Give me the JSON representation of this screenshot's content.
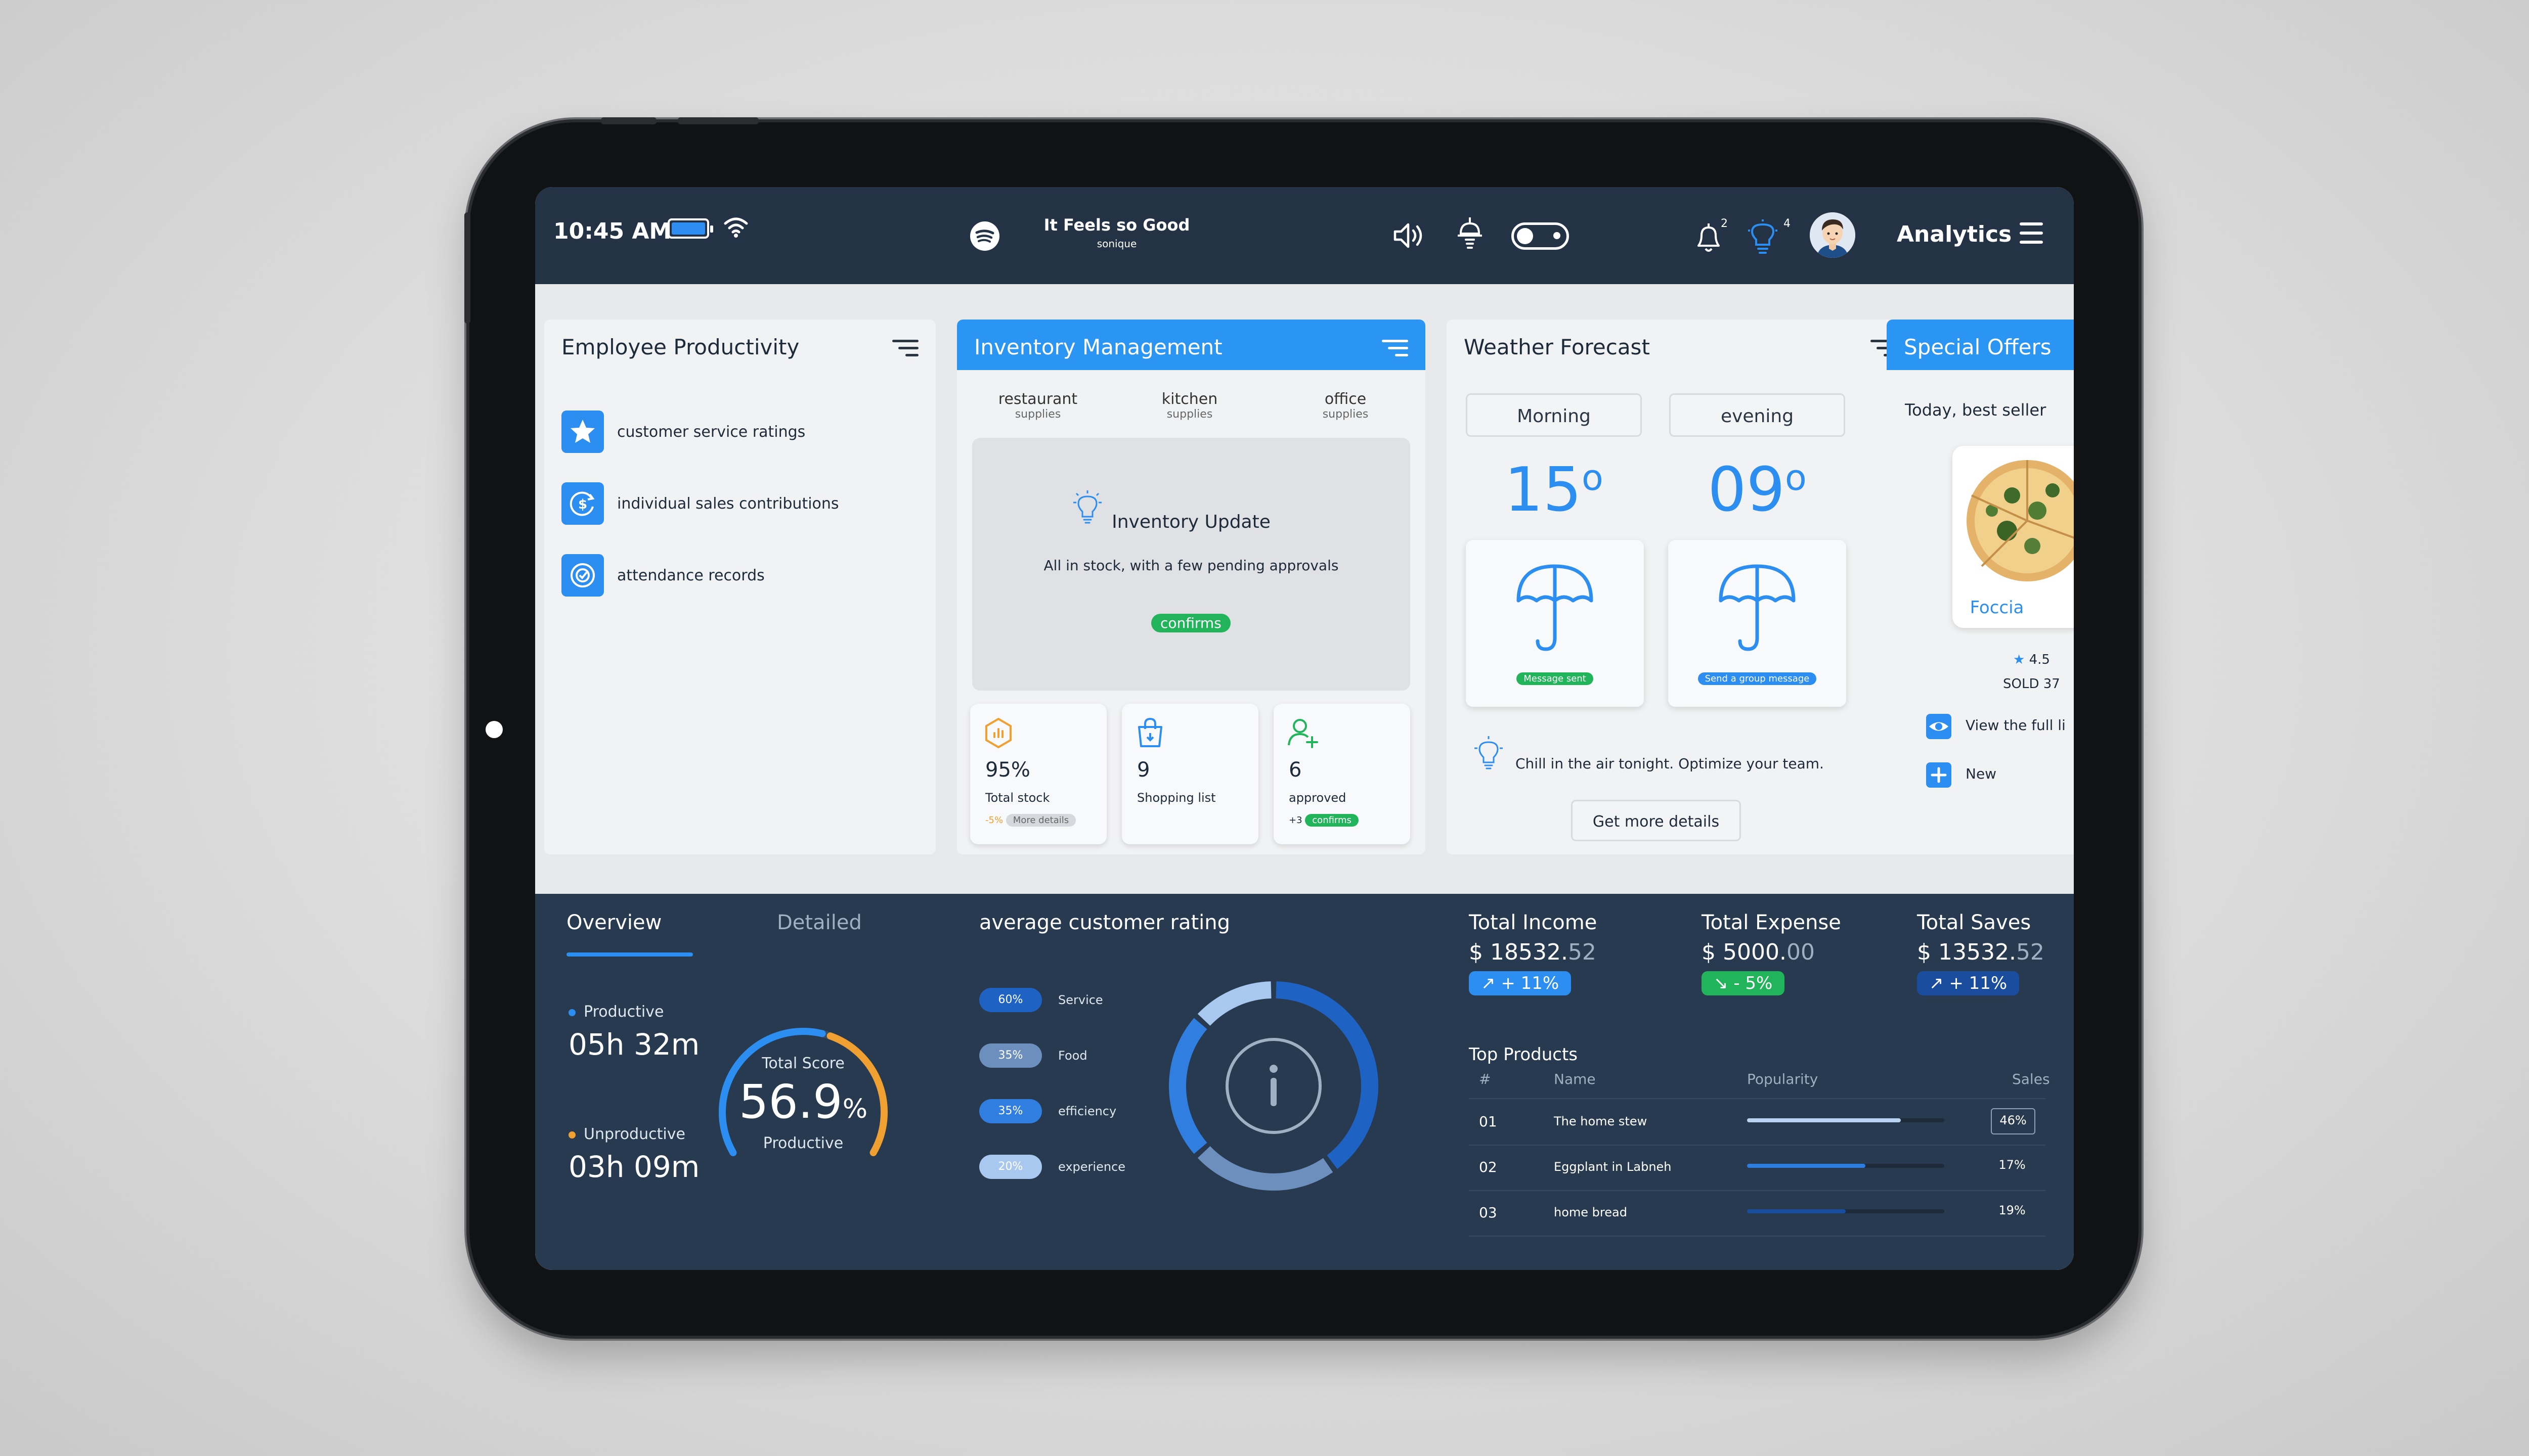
{
  "statusbar": {
    "time": "10:45 AM",
    "song_title": "It Feels so Good",
    "song_artist": "sonique",
    "notif_count": "2",
    "bulb_count": "4",
    "title": "Analytics"
  },
  "productivity": {
    "title": "Employee Productivity",
    "items": [
      {
        "label": "customer service ratings",
        "icon": "star-icon"
      },
      {
        "label": "individual sales contributions",
        "icon": "dollar-refresh-icon"
      },
      {
        "label": "attendance records",
        "icon": "target-icon"
      }
    ]
  },
  "inventory": {
    "title": "Inventory Management",
    "tabs": [
      {
        "a": "restaurant",
        "b": "supplies"
      },
      {
        "a": "kitchen",
        "b": "supplies"
      },
      {
        "a": "office",
        "b": "supplies"
      }
    ],
    "update_title": "Inventory Update",
    "update_text": "All in stock, with a few pending approvals",
    "confirm_label": "confirms",
    "stats": [
      {
        "value": "95%",
        "label": "Total stock",
        "extra": "-5%",
        "extra2": "More details"
      },
      {
        "value": "9",
        "label": "Shopping list"
      },
      {
        "value": "6",
        "label": "approved",
        "extra": "+3",
        "extra2": "confirms"
      }
    ]
  },
  "weather": {
    "title": "Weather Forecast",
    "tabs": [
      "Morning",
      "evening"
    ],
    "temps": [
      "15",
      "09"
    ],
    "degree": "o",
    "buttons": [
      "Message sent",
      "Send a group message"
    ],
    "tip": "Chill in the air tonight. Optimize your team.",
    "more_label": "Get more details"
  },
  "offers": {
    "title": "Special Offers",
    "subtitle": "Today, best seller",
    "product": "Foccia",
    "rating": "4.5",
    "sold": "SOLD 37",
    "view_label": "View the full li",
    "new_label": "New"
  },
  "overview": {
    "tab_overview": "Overview",
    "tab_detailed": "Detailed",
    "productive_label": "Productive",
    "productive_value": "05h 32m",
    "unproductive_label": "Unproductive",
    "unproductive_value": "03h 09m",
    "score_label": "Total Score",
    "score_value": "56.9",
    "score_unit": "%",
    "score_sub": "Productive",
    "score": 56.9
  },
  "rating": {
    "title": "average customer rating",
    "items": [
      {
        "pct": "60%",
        "label": "Service",
        "value": 60,
        "color": "#1e63c4"
      },
      {
        "pct": "35%",
        "label": "Food",
        "value": 35,
        "color": "#6d8fbe"
      },
      {
        "pct": "35%",
        "label": "efficiency",
        "value": 35,
        "color": "#2f7ee0"
      },
      {
        "pct": "20%",
        "label": "experience",
        "value": 20,
        "color": "#a8c8ef"
      }
    ]
  },
  "finance": [
    {
      "title": "Total Income",
      "value_main": "$ 18532.",
      "value_dec": "52",
      "badge": "+ 11%",
      "badge_color": "#2b8ef0",
      "trend": "up"
    },
    {
      "title": "Total Expense",
      "value_main": "$ 5000.",
      "value_dec": "00",
      "badge": "- 5%",
      "badge_color": "#22b45a",
      "trend": "down"
    },
    {
      "title": "Total Saves",
      "value_main": "$ 13532.",
      "value_dec": "52",
      "badge": "+ 11%",
      "badge_color": "#1a4d9e",
      "trend": "up"
    }
  ],
  "top_products": {
    "title": "Top Products",
    "headers": [
      "#",
      "Name",
      "Popularity",
      "Sales"
    ],
    "rows": [
      {
        "num": "01",
        "name": "The home stew",
        "pct": "46%",
        "value": 0.78,
        "color": "#b9d2f2"
      },
      {
        "num": "02",
        "name": "Eggplant in Labneh",
        "pct": "17%",
        "value": 0.6,
        "color": "#2b7de0"
      },
      {
        "num": "03",
        "name": "home bread",
        "pct": "19%",
        "value": 0.5,
        "color": "#1a4d9e"
      }
    ]
  }
}
